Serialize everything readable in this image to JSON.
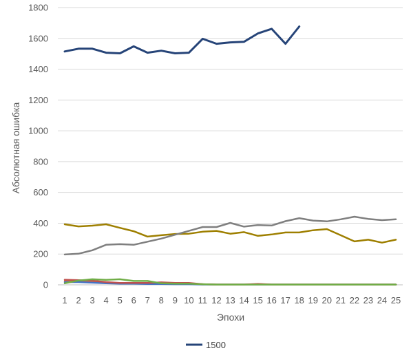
{
  "chart_data": {
    "type": "line",
    "xlabel": "Эпохи",
    "ylabel": "Абсолютная ошибка",
    "ylim": [
      0,
      1800
    ],
    "yticks": [
      0,
      200,
      400,
      600,
      800,
      1000,
      1200,
      1400,
      1600,
      1800
    ],
    "x": [
      1,
      2,
      3,
      4,
      5,
      6,
      7,
      8,
      9,
      10,
      11,
      12,
      13,
      14,
      15,
      16,
      17,
      18,
      19,
      20,
      21,
      22,
      23,
      24,
      25
    ],
    "grid": "horizontal",
    "legend_position": "bottom",
    "series": [
      {
        "name": "1500",
        "color": "#264478",
        "in_legend": true,
        "values": [
          1515,
          1533,
          1533,
          1507,
          1503,
          1548,
          1507,
          1520,
          1503,
          1507,
          1597,
          1565,
          1574,
          1578,
          1632,
          1662,
          1565,
          1677,
          null,
          null,
          null,
          null,
          null,
          null,
          null
        ]
      },
      {
        "color": "#7F7F7F",
        "in_legend": false,
        "values": [
          197,
          202,
          224,
          260,
          264,
          260,
          280,
          300,
          325,
          350,
          375,
          375,
          402,
          378,
          388,
          385,
          413,
          433,
          417,
          412,
          425,
          442,
          428,
          420,
          425
        ]
      },
      {
        "color": "#9E7F00",
        "in_legend": false,
        "values": [
          393,
          379,
          384,
          393,
          370,
          348,
          313,
          322,
          330,
          332,
          345,
          350,
          332,
          342,
          318,
          327,
          340,
          340,
          354,
          362,
          322,
          282,
          293,
          274,
          293
        ]
      },
      {
        "color": "#70AD47",
        "in_legend": false,
        "values": [
          10,
          28,
          36,
          32,
          36,
          25,
          25,
          10,
          8,
          8,
          4,
          2,
          2,
          2,
          2,
          2,
          2,
          2,
          2,
          2,
          2,
          2,
          2,
          2,
          2
        ]
      },
      {
        "color": "#C0504D",
        "in_legend": false,
        "values": [
          33,
          30,
          27,
          18,
          12,
          12,
          12,
          16,
          12,
          12,
          4,
          2,
          2,
          2,
          6,
          2,
          2,
          2,
          2,
          2,
          2,
          2,
          2,
          2,
          2
        ]
      },
      {
        "color": "#4472C4",
        "in_legend": false,
        "values": [
          18,
          18,
          14,
          10,
          8,
          8,
          6,
          6,
          4,
          4,
          2,
          2,
          2,
          2,
          2,
          2,
          2,
          2,
          2,
          2,
          2,
          2,
          2,
          2,
          2
        ]
      },
      {
        "color": "#ED7D31",
        "in_legend": false,
        "values": [
          25,
          20,
          18,
          14,
          10,
          8,
          8,
          6,
          6,
          6,
          4,
          2,
          2,
          2,
          2,
          2,
          2,
          2,
          2,
          2,
          2,
          2,
          2,
          2,
          2
        ]
      }
    ]
  }
}
